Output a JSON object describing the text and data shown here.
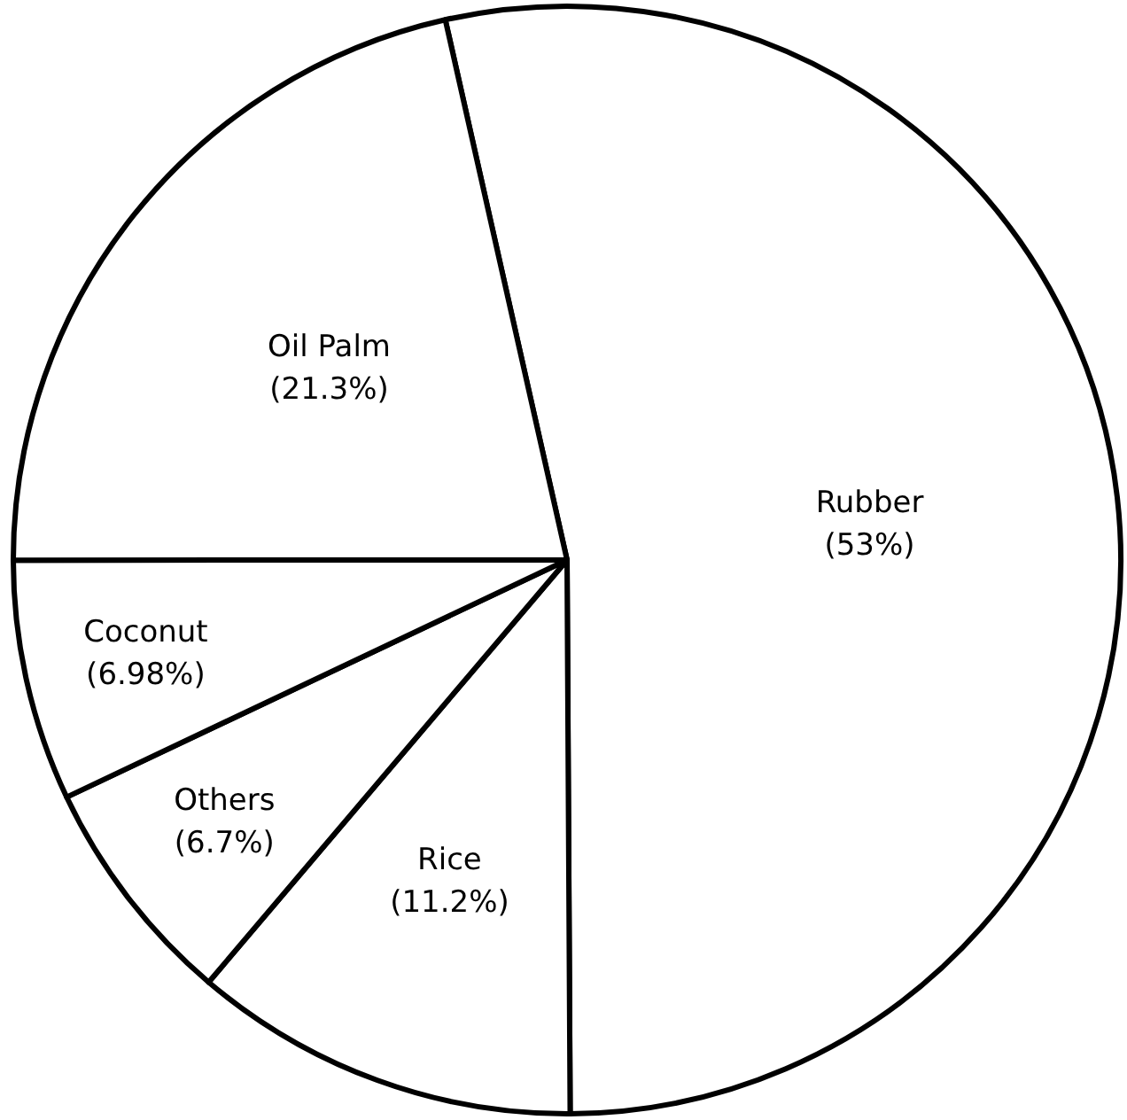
{
  "chart_data": {
    "type": "pie",
    "categories": [
      "Rubber",
      "Rice",
      "Others",
      "Coconut",
      "Oil Palm"
    ],
    "values": [
      53,
      11.2,
      6.7,
      6.98,
      21.3
    ],
    "value_labels": [
      "(53%)",
      "(11.2%)",
      "(6.7%)",
      "(6.98%)",
      "(21.3%)"
    ],
    "colors": [
      "#ffffff",
      "#ffffff",
      "#ffffff",
      "#ffffff",
      "#ffffff"
    ],
    "legend": false
  }
}
